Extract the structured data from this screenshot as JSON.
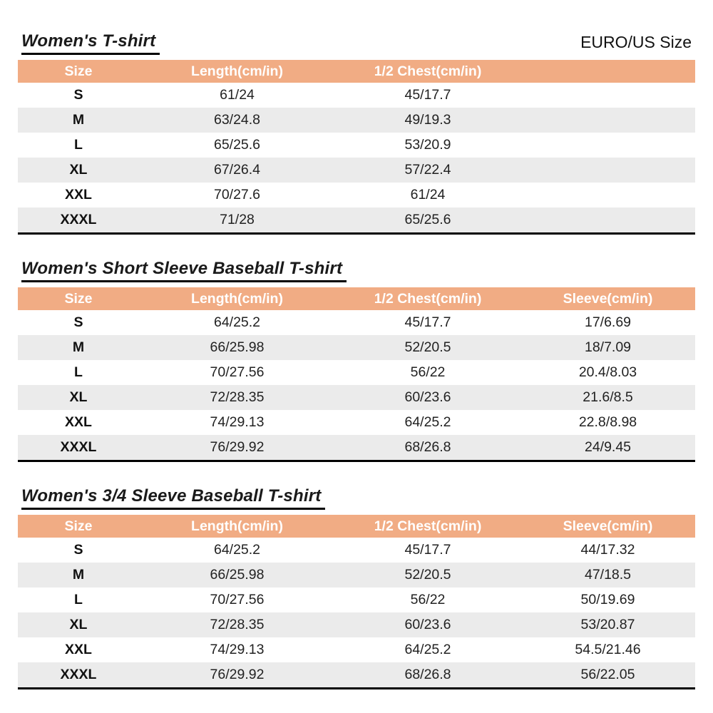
{
  "page": {
    "size_standard_label": "EURO/US Size",
    "background": "#FFFFFF"
  },
  "colors": {
    "header_bg": "#F1AC84",
    "header_text": "#FFFFFF",
    "row_alt_bg": "#EBEBEB",
    "text": "#1A1A1A",
    "table_bottom_border": "#000000"
  },
  "tables": [
    {
      "title": "Women's T-shirt",
      "columns": [
        "Size",
        "Length(cm/in)",
        "1/2 Chest(cm/in)",
        ""
      ],
      "rows": [
        [
          "S",
          "61/24",
          "45/17.7",
          ""
        ],
        [
          "M",
          "63/24.8",
          "49/19.3",
          ""
        ],
        [
          "L",
          "65/25.6",
          "53/20.9",
          ""
        ],
        [
          "XL",
          "67/26.4",
          "57/22.4",
          ""
        ],
        [
          "XXL",
          "70/27.6",
          "61/24",
          ""
        ],
        [
          "XXXL",
          "71/28",
          "65/25.6",
          ""
        ]
      ]
    },
    {
      "title": "Women's Short Sleeve Baseball T-shirt",
      "columns": [
        "Size",
        "Length(cm/in)",
        "1/2 Chest(cm/in)",
        "Sleeve(cm/in)"
      ],
      "rows": [
        [
          "S",
          "64/25.2",
          "45/17.7",
          "17/6.69"
        ],
        [
          "M",
          "66/25.98",
          "52/20.5",
          "18/7.09"
        ],
        [
          "L",
          "70/27.56",
          "56/22",
          "20.4/8.03"
        ],
        [
          "XL",
          "72/28.35",
          "60/23.6",
          "21.6/8.5"
        ],
        [
          "XXL",
          "74/29.13",
          "64/25.2",
          "22.8/8.98"
        ],
        [
          "XXXL",
          "76/29.92",
          "68/26.8",
          "24/9.45"
        ]
      ]
    },
    {
      "title": "Women's 3/4 Sleeve Baseball T-shirt",
      "columns": [
        "Size",
        "Length(cm/in)",
        "1/2 Chest(cm/in)",
        "Sleeve(cm/in)"
      ],
      "rows": [
        [
          "S",
          "64/25.2",
          "45/17.7",
          "44/17.32"
        ],
        [
          "M",
          "66/25.98",
          "52/20.5",
          "47/18.5"
        ],
        [
          "L",
          "70/27.56",
          "56/22",
          "50/19.69"
        ],
        [
          "XL",
          "72/28.35",
          "60/23.6",
          "53/20.87"
        ],
        [
          "XXL",
          "74/29.13",
          "64/25.2",
          "54.5/21.46"
        ],
        [
          "XXXL",
          "76/29.92",
          "68/26.8",
          "56/22.05"
        ]
      ]
    }
  ]
}
